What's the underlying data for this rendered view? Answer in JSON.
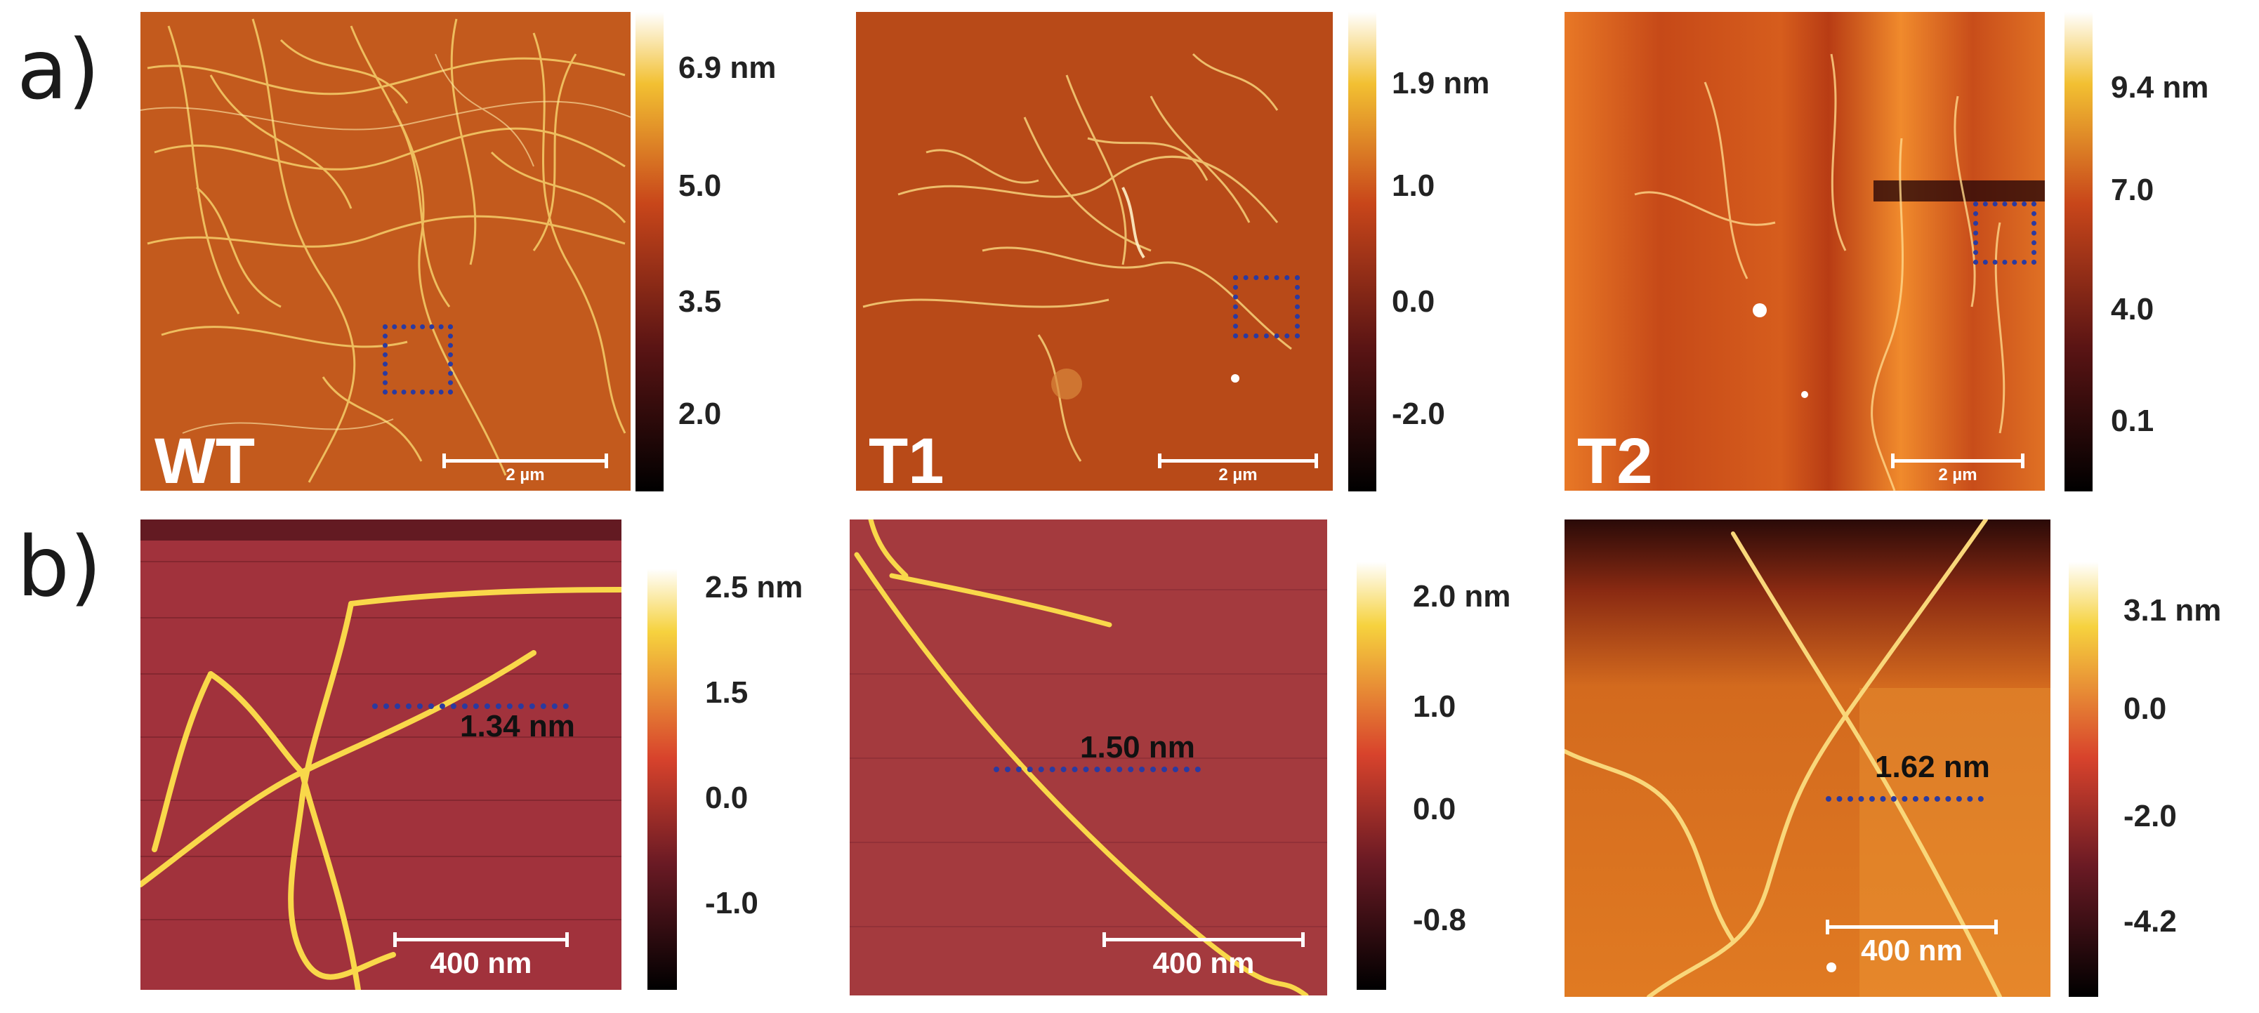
{
  "row_labels": {
    "a": "a)",
    "b": "b)"
  },
  "colors": {
    "afm_dark": "#1a0a05",
    "afm_mid": "#b54a1c",
    "afm_bright": "#f4c542",
    "afm_white": "#fffbe8",
    "box_blue": "#2b3aa0"
  },
  "row_a": [
    {
      "label": "WT",
      "scale": "2 µm",
      "colorbar": [
        "6.9 nm",
        "5.0",
        "3.5",
        "2.0"
      ]
    },
    {
      "label": "T1",
      "scale": "2 µm",
      "colorbar": [
        "1.9 nm",
        "1.0",
        "0.0",
        "-2.0"
      ]
    },
    {
      "label": "T2",
      "scale": "2 µm",
      "colorbar": [
        "9.4 nm",
        "7.0",
        "4.0",
        "0.1"
      ]
    }
  ],
  "row_b": [
    {
      "scale": "400 nm",
      "measure": "1.34 nm",
      "colorbar": [
        "2.5 nm",
        "1.5",
        "0.0",
        "-1.0"
      ]
    },
    {
      "scale": "400 nm",
      "measure": "1.50 nm",
      "colorbar": [
        "2.0 nm",
        "1.0",
        "0.0",
        "-0.8"
      ]
    },
    {
      "scale": "400 nm",
      "measure": "1.62 nm",
      "colorbar": [
        "3.1 nm",
        "0.0",
        "-2.0",
        "-4.2"
      ]
    }
  ]
}
